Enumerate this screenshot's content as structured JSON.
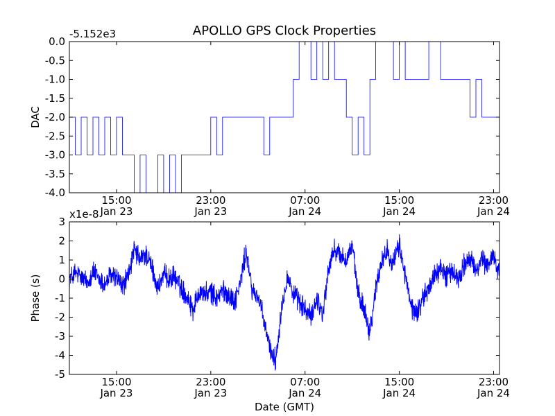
{
  "figure_title": "APOLLO GPS Clock Properties",
  "chart_data": [
    {
      "type": "line",
      "name": "dac",
      "title": "APOLLO GPS Clock Properties",
      "ylabel": "DAC",
      "xlabel": "",
      "offset_text": "-5.152e3",
      "color": "#0000ff",
      "ylim": [
        -4.0,
        0.0
      ],
      "yticks": [
        0.0,
        -0.5,
        -1.0,
        -1.5,
        -2.0,
        -2.5,
        -3.0,
        -3.5,
        -4.0
      ],
      "ytick_labels": [
        "0.0",
        "-0.5",
        "-1.0",
        "-1.5",
        "-2.0",
        "-2.5",
        "-3.0",
        "-3.5",
        "-4.0"
      ],
      "xlim_hours": [
        11.0,
        47.5
      ],
      "xticks_hours": [
        15,
        23,
        31,
        39,
        47
      ],
      "xtick_labels": [
        [
          "15:00",
          "Jan 23"
        ],
        [
          "23:00",
          "Jan 23"
        ],
        [
          "07:00",
          "Jan 24"
        ],
        [
          "15:00",
          "Jan 24"
        ],
        [
          "23:00",
          "Jan 24"
        ]
      ],
      "series": [
        {
          "name": "DAC",
          "x_hours": [
            11.0,
            11.5,
            12.0,
            12.5,
            13.0,
            13.5,
            14.0,
            14.5,
            15.0,
            15.5,
            16.0,
            16.5,
            17.0,
            17.5,
            18.0,
            18.5,
            19.0,
            19.5,
            20.0,
            20.5,
            21.0,
            21.5,
            22.0,
            22.5,
            23.0,
            23.5,
            24.0,
            24.5,
            25.0,
            25.5,
            26.0,
            26.5,
            27.0,
            27.5,
            28.0,
            28.5,
            29.0,
            29.5,
            30.0,
            30.5,
            31.0,
            31.5,
            32.0,
            32.5,
            33.0,
            33.5,
            34.0,
            34.5,
            35.0,
            35.5,
            36.0,
            36.5,
            37.0,
            37.5,
            38.0,
            38.5,
            39.0,
            39.5,
            40.0,
            40.5,
            41.0,
            41.5,
            42.0,
            42.5,
            43.0,
            43.5,
            44.0,
            44.5,
            45.0,
            45.5,
            46.0,
            46.5,
            47.0,
            47.5
          ],
          "values": [
            -2,
            -3,
            -2,
            -3,
            -2,
            -3,
            -2,
            -3,
            -2,
            -3,
            -3,
            -4,
            -3,
            -4,
            -4,
            -3,
            -4,
            -3,
            -4,
            -3,
            -3,
            -3,
            -3,
            -3,
            -2,
            -3,
            -2,
            -2,
            -2,
            -2,
            -2,
            -2,
            -2,
            -3,
            -2,
            -2,
            -2,
            -2,
            -1,
            0,
            0,
            -1,
            0,
            -1,
            0,
            -1,
            -1,
            -2,
            -3,
            -2,
            -3,
            -1,
            0,
            0,
            0,
            -1,
            0,
            -1,
            -1,
            -1,
            -1,
            0,
            0,
            -1,
            -1,
            -1,
            -1,
            -1,
            -2,
            -1,
            -2,
            -2,
            -2,
            -1
          ]
        }
      ]
    },
    {
      "type": "line",
      "name": "phase",
      "title": "",
      "ylabel": "Phase (s)",
      "xlabel": "Date (GMT)",
      "offset_text": "x1e-8",
      "color": "#0000ff",
      "ylim": [
        -5,
        3
      ],
      "yticks": [
        3,
        2,
        1,
        0,
        -1,
        -2,
        -3,
        -4,
        -5
      ],
      "ytick_labels": [
        "3",
        "2",
        "1",
        "0",
        "-1",
        "-2",
        "-3",
        "-4",
        "-5"
      ],
      "xlim_hours": [
        11.0,
        47.5
      ],
      "xticks_hours": [
        15,
        23,
        31,
        39,
        47
      ],
      "xtick_labels": [
        [
          "15:00",
          "Jan 23"
        ],
        [
          "23:00",
          "Jan 23"
        ],
        [
          "07:00",
          "Jan 24"
        ],
        [
          "15:00",
          "Jan 24"
        ],
        [
          "23:00",
          "Jan 24"
        ]
      ],
      "series": [
        {
          "name": "Phase",
          "x_hours": [
            11.0,
            11.5,
            12.0,
            12.5,
            13.0,
            13.5,
            14.0,
            14.5,
            15.0,
            15.5,
            16.0,
            16.5,
            17.0,
            17.5,
            18.0,
            18.5,
            19.0,
            19.5,
            20.0,
            20.5,
            21.0,
            21.5,
            22.0,
            22.5,
            23.0,
            23.5,
            24.0,
            24.5,
            25.0,
            25.5,
            26.0,
            26.5,
            27.0,
            27.5,
            28.0,
            28.5,
            29.0,
            29.5,
            30.0,
            30.5,
            31.0,
            31.5,
            32.0,
            32.5,
            33.0,
            33.5,
            34.0,
            34.5,
            35.0,
            35.5,
            36.0,
            36.5,
            37.0,
            37.5,
            38.0,
            38.5,
            39.0,
            39.5,
            40.0,
            40.5,
            41.0,
            41.5,
            42.0,
            42.5,
            43.0,
            43.5,
            44.0,
            44.5,
            45.0,
            45.5,
            46.0,
            46.5,
            47.0,
            47.5
          ],
          "values": [
            0.0,
            0.3,
            0.1,
            -0.2,
            0.4,
            0.0,
            -0.3,
            0.2,
            0.1,
            -0.4,
            0.2,
            1.5,
            1.0,
            1.3,
            0.6,
            -0.5,
            0.2,
            0.0,
            0.1,
            -0.5,
            -0.9,
            -1.6,
            -0.6,
            -0.8,
            -0.7,
            -1.0,
            -0.6,
            -0.8,
            -1.2,
            -0.2,
            1.5,
            -0.6,
            -0.9,
            -2.2,
            -3.6,
            -4.3,
            -1.5,
            0.2,
            -0.8,
            -1.2,
            -1.6,
            -2.0,
            -1.0,
            -1.8,
            0.5,
            1.6,
            1.2,
            1.0,
            1.8,
            -0.8,
            -1.5,
            -2.8,
            -0.5,
            1.0,
            1.5,
            0.8,
            1.8,
            0.2,
            -1.5,
            -1.8,
            -1.0,
            -0.5,
            0.3,
            0.5,
            0.2,
            0.4,
            0.0,
            0.8,
            1.0,
            0.5,
            1.0,
            0.7,
            1.3,
            0.3
          ]
        }
      ]
    }
  ]
}
